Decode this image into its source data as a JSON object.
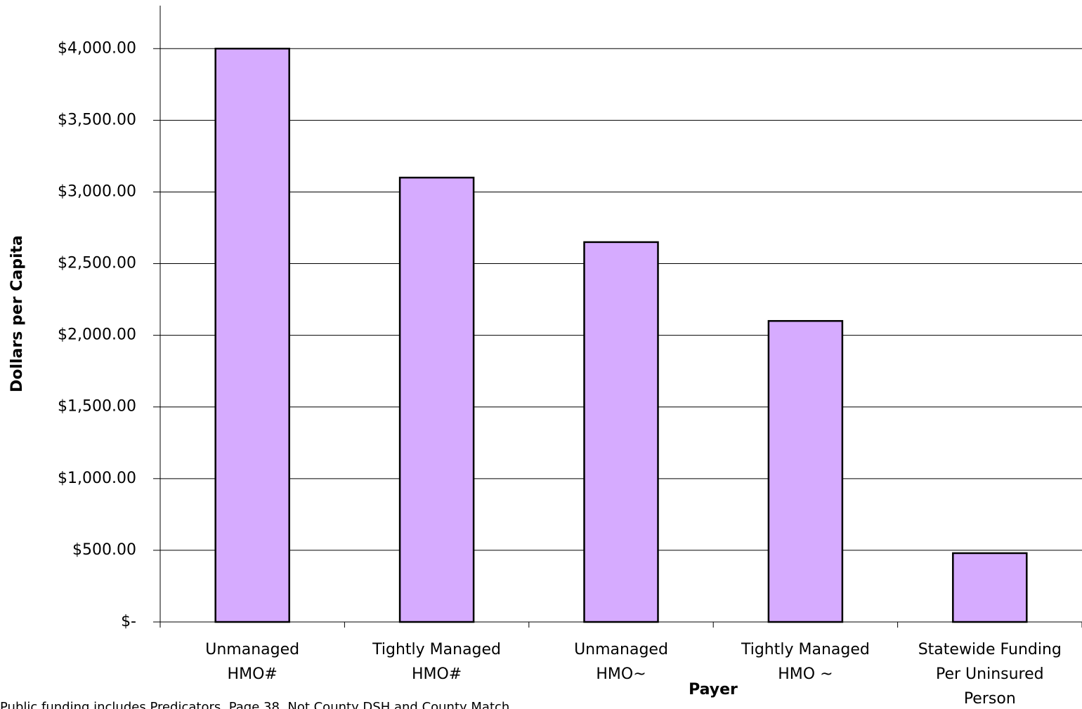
{
  "chart_data": {
    "type": "bar",
    "categories": [
      [
        "Unmanaged",
        "HMO#"
      ],
      [
        "Tightly Managed",
        "HMO#"
      ],
      [
        "Unmanaged",
        "HMO~"
      ],
      [
        "Tightly Managed",
        "HMO ~"
      ],
      [
        "Statewide Funding",
        "Per Uninsured",
        "Person"
      ]
    ],
    "values": [
      4000,
      3100,
      2650,
      2100,
      480
    ],
    "color": "#d6abff",
    "ylim": [
      0,
      4300
    ],
    "yticks": [
      {
        "value": 0,
        "label": "$-"
      },
      {
        "value": 500,
        "label": "$500.00"
      },
      {
        "value": 1000,
        "label": "$1,000.00"
      },
      {
        "value": 1500,
        "label": "$1,500.00"
      },
      {
        "value": 2000,
        "label": "$2,000.00"
      },
      {
        "value": 2500,
        "label": "$2,500.00"
      },
      {
        "value": 3000,
        "label": "$3,000.00"
      },
      {
        "value": 3500,
        "label": "$3,500.00"
      },
      {
        "value": 4000,
        "label": "$4,000.00"
      }
    ],
    "grid": true,
    "ylabel": "Dollars per Capita",
    "xlabel": "Payer",
    "footnote": "Public funding includes Predicators, Page 38, Not County DSH and County Match"
  }
}
